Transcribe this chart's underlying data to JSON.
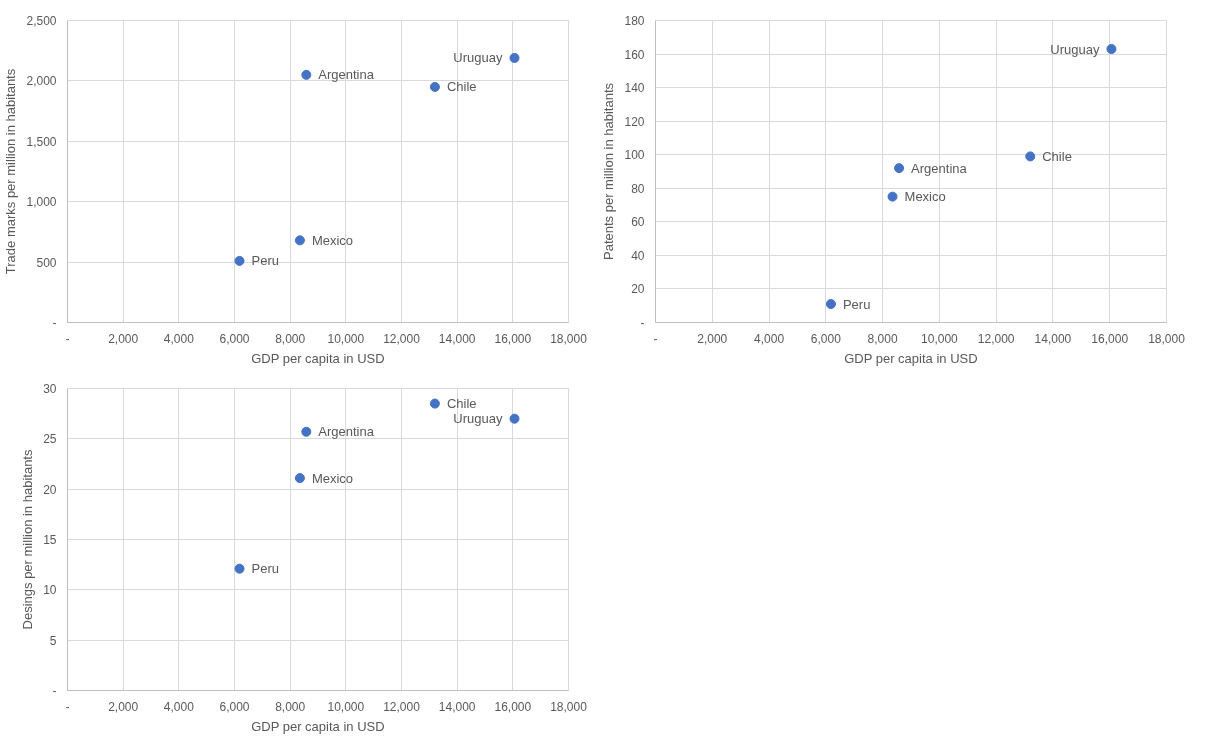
{
  "chart_data": [
    {
      "type": "scatter",
      "xlabel": "GDP per capita in USD",
      "ylabel": "Trade marks per million in habitants",
      "grid": true,
      "legend": false,
      "marker": "circle",
      "xlim": [
        0,
        18000
      ],
      "ylim": [
        0,
        2500
      ],
      "xticks": [
        {
          "value": 0,
          "label": "-"
        },
        {
          "value": 2000,
          "label": "2,000"
        },
        {
          "value": 4000,
          "label": "4,000"
        },
        {
          "value": 6000,
          "label": "6,000"
        },
        {
          "value": 8000,
          "label": "8,000"
        },
        {
          "value": 10000,
          "label": "10,000"
        },
        {
          "value": 12000,
          "label": "12,000"
        },
        {
          "value": 14000,
          "label": "14,000"
        },
        {
          "value": 16000,
          "label": "16,000"
        },
        {
          "value": 18000,
          "label": "18,000"
        }
      ],
      "yticks": [
        {
          "value": 0,
          "label": "-"
        },
        {
          "value": 500,
          "label": "500"
        },
        {
          "value": 1000,
          "label": "1,000"
        },
        {
          "value": 1500,
          "label": "1,500"
        },
        {
          "value": 2000,
          "label": "2,000"
        },
        {
          "value": 2500,
          "label": "2,500"
        }
      ],
      "series": [
        {
          "name": "Argentina",
          "color": "#4472c4",
          "x": [
            8580
          ],
          "values": [
            2050
          ]
        },
        {
          "name": "Chile",
          "color": "#4472c4",
          "x": [
            13200
          ],
          "values": [
            1950
          ]
        },
        {
          "name": "Uruguay",
          "color": "#4472c4",
          "x": [
            16060
          ],
          "values": [
            2190
          ]
        },
        {
          "name": "Mexico",
          "color": "#4472c4",
          "x": [
            8350
          ],
          "values": [
            680
          ]
        },
        {
          "name": "Peru",
          "color": "#4472c4",
          "x": [
            6180
          ],
          "values": [
            510
          ]
        }
      ]
    },
    {
      "type": "scatter",
      "xlabel": "GDP per capita in USD",
      "ylabel": "Patents per million in habitants",
      "grid": true,
      "legend": false,
      "marker": "circle",
      "xlim": [
        0,
        18000
      ],
      "ylim": [
        0,
        180
      ],
      "xticks": [
        {
          "value": 0,
          "label": "-"
        },
        {
          "value": 2000,
          "label": "2,000"
        },
        {
          "value": 4000,
          "label": "4,000"
        },
        {
          "value": 6000,
          "label": "6,000"
        },
        {
          "value": 8000,
          "label": "8,000"
        },
        {
          "value": 10000,
          "label": "10,000"
        },
        {
          "value": 12000,
          "label": "12,000"
        },
        {
          "value": 14000,
          "label": "14,000"
        },
        {
          "value": 16000,
          "label": "16,000"
        },
        {
          "value": 18000,
          "label": "18,000"
        }
      ],
      "yticks": [
        {
          "value": 0,
          "label": "-"
        },
        20,
        40,
        60,
        80,
        100,
        120,
        140,
        160,
        180
      ],
      "series": [
        {
          "name": "Uruguay",
          "color": "#4472c4",
          "x": [
            16060
          ],
          "values": [
            163
          ]
        },
        {
          "name": "Chile",
          "color": "#4472c4",
          "x": [
            13200
          ],
          "values": [
            99
          ]
        },
        {
          "name": "Argentina",
          "color": "#4472c4",
          "x": [
            8580
          ],
          "values": [
            92
          ]
        },
        {
          "name": "Mexico",
          "color": "#4472c4",
          "x": [
            8350
          ],
          "values": [
            75
          ]
        },
        {
          "name": "Peru",
          "color": "#4472c4",
          "x": [
            6180
          ],
          "values": [
            11
          ]
        }
      ]
    },
    {
      "type": "scatter",
      "xlabel": "GDP per capita in USD",
      "ylabel": "Desings per million in habitants",
      "grid": true,
      "legend": false,
      "marker": "circle",
      "xlim": [
        0,
        18000
      ],
      "ylim": [
        0,
        30
      ],
      "xticks": [
        {
          "value": 0,
          "label": "-"
        },
        {
          "value": 2000,
          "label": "2,000"
        },
        {
          "value": 4000,
          "label": "4,000"
        },
        {
          "value": 6000,
          "label": "6,000"
        },
        {
          "value": 8000,
          "label": "8,000"
        },
        {
          "value": 10000,
          "label": "10,000"
        },
        {
          "value": 12000,
          "label": "12,000"
        },
        {
          "value": 14000,
          "label": "14,000"
        },
        {
          "value": 16000,
          "label": "16,000"
        },
        {
          "value": 18000,
          "label": "18,000"
        }
      ],
      "yticks": [
        {
          "value": 0,
          "label": "-"
        },
        5,
        10,
        15,
        20,
        25,
        30
      ],
      "series": [
        {
          "name": "Chile",
          "color": "#4472c4",
          "x": [
            13200
          ],
          "values": [
            28.5
          ]
        },
        {
          "name": "Uruguay",
          "color": "#4472c4",
          "x": [
            16060
          ],
          "values": [
            27.0
          ]
        },
        {
          "name": "Argentina",
          "color": "#4472c4",
          "x": [
            8580
          ],
          "values": [
            25.7
          ]
        },
        {
          "name": "Mexico",
          "color": "#4472c4",
          "x": [
            8350
          ],
          "values": [
            21.1
          ]
        },
        {
          "name": "Peru",
          "color": "#4472c4",
          "x": [
            6180
          ],
          "values": [
            12.1
          ]
        }
      ]
    }
  ]
}
